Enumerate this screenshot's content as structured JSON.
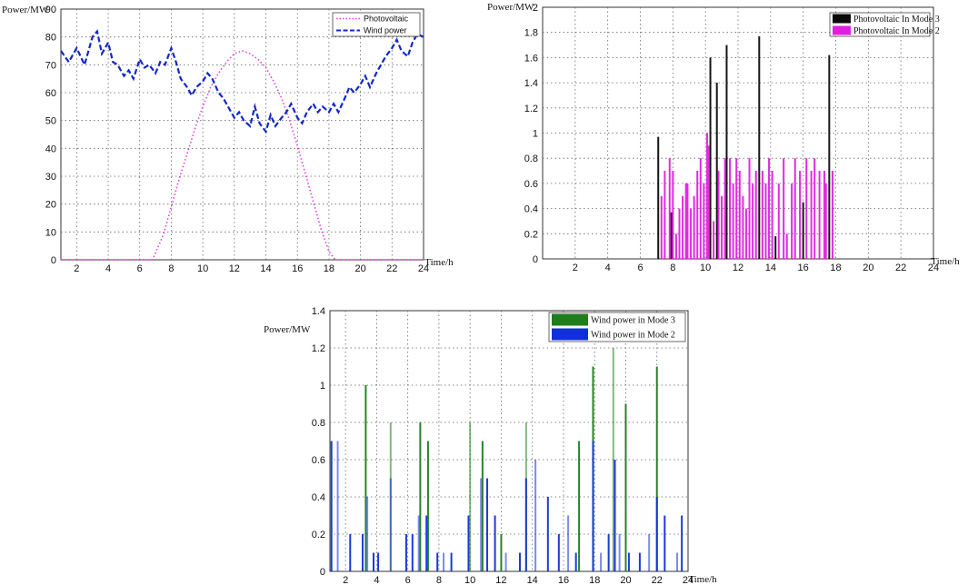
{
  "chart_data": [
    {
      "type": "line",
      "xlabel": "Time/h",
      "ylabel": "Power/MW",
      "xlim": [
        1,
        24
      ],
      "ylim": [
        0,
        90
      ],
      "xticks": [
        2,
        4,
        6,
        8,
        10,
        12,
        14,
        16,
        18,
        20,
        22,
        24
      ],
      "yticks": [
        0,
        10,
        20,
        30,
        40,
        50,
        60,
        70,
        80,
        90
      ],
      "grid": true,
      "legend": "top-right",
      "series": [
        {
          "name": "Photovoltaic",
          "color": "#e040e0",
          "style": "dotted",
          "x": [
            1,
            6.8,
            7.5,
            8,
            8.5,
            9,
            9.5,
            10,
            10.5,
            11,
            11.5,
            12,
            12.5,
            13,
            13.5,
            14,
            14.5,
            15,
            15.5,
            16,
            16.5,
            17,
            17.5,
            18,
            18.4,
            24
          ],
          "y": [
            0,
            0,
            9,
            19,
            29,
            38,
            47,
            55,
            62,
            67,
            71,
            74,
            75,
            74,
            72,
            69,
            64,
            58,
            50,
            41,
            31,
            21,
            11,
            3,
            0,
            0
          ]
        },
        {
          "name": "Wind power",
          "color": "#1428c8",
          "style": "dashed",
          "x": [
            1,
            1.5,
            2,
            2.5,
            3,
            3.3,
            3.6,
            4,
            4.3,
            4.6,
            5,
            5.3,
            5.6,
            6,
            6.3,
            6.6,
            7,
            7.3,
            7.6,
            8,
            8.3,
            8.6,
            9,
            9.3,
            9.6,
            10,
            10.3,
            10.6,
            11,
            11.3,
            11.6,
            12,
            12.3,
            12.6,
            13,
            13.3,
            13.6,
            14,
            14.3,
            14.6,
            15,
            15.3,
            15.6,
            16,
            16.3,
            16.6,
            17,
            17.3,
            17.6,
            18,
            18.3,
            18.6,
            19,
            19.3,
            19.6,
            20,
            20.3,
            20.6,
            21,
            21.3,
            21.6,
            22,
            22.3,
            22.6,
            23,
            23.3,
            23.6,
            24
          ],
          "y": [
            75,
            71,
            76,
            70,
            80,
            82,
            74,
            78,
            71,
            70,
            66,
            68,
            65,
            72,
            69,
            70,
            67,
            71,
            70,
            76,
            71,
            65,
            62,
            59,
            62,
            64,
            67,
            65,
            60,
            58,
            55,
            51,
            53,
            50,
            48,
            55,
            49,
            46,
            52,
            48,
            51,
            53,
            56,
            51,
            49,
            53,
            56,
            53,
            55,
            53,
            56,
            53,
            58,
            62,
            60,
            63,
            66,
            62,
            67,
            70,
            73,
            76,
            79,
            75,
            73,
            78,
            81,
            80
          ]
        }
      ]
    },
    {
      "type": "bar",
      "xlabel": "Time/h",
      "ylabel": "Power/MW",
      "xlim": [
        0,
        24
      ],
      "ylim": [
        0,
        2
      ],
      "xticks": [
        2,
        4,
        6,
        8,
        10,
        12,
        14,
        16,
        18,
        20,
        22,
        24
      ],
      "yticks": [
        0,
        0.2,
        0.4,
        0.6,
        0.8,
        1,
        1.2,
        1.4,
        1.6,
        1.8,
        2
      ],
      "ytick_labels": [
        "0",
        "0.2",
        "0.4",
        "0.6",
        "0.8",
        "1",
        "1.2",
        "1.4",
        "1.6",
        "1.8",
        "2"
      ],
      "grid": true,
      "legend": "top-right",
      "series": [
        {
          "name": "Photovoltaic In Mode 3",
          "color": "#0a0a0a",
          "x": [
            7.1,
            7.9,
            10.3,
            10.7,
            11.3,
            13.3,
            14.3,
            16.0,
            17.6
          ],
          "values": [
            0.97,
            0.37,
            1.6,
            1.4,
            1.7,
            1.77,
            0.18,
            0.45,
            1.62
          ]
        },
        {
          "name": "Photovoltaic In Mode 2",
          "color": "#e020e0",
          "x": [
            7.3,
            7.5,
            7.8,
            8.0,
            8.2,
            8.4,
            8.6,
            8.8,
            8.9,
            9.1,
            9.3,
            9.5,
            9.7,
            9.9,
            10.1,
            10.2,
            10.5,
            10.8,
            11.0,
            11.2,
            11.5,
            11.7,
            11.9,
            12.1,
            12.3,
            12.5,
            12.7,
            12.9,
            13.1,
            13.5,
            13.7,
            13.9,
            14.1,
            14.5,
            14.8,
            15.0,
            15.3,
            15.5,
            15.8,
            16.2,
            16.5,
            16.7,
            17.0,
            17.3,
            17.4,
            17.8
          ],
          "values": [
            0.5,
            0.7,
            0.8,
            0.7,
            0.2,
            0.4,
            0.5,
            0.6,
            0.6,
            0.4,
            0.5,
            0.7,
            0.8,
            0.6,
            1.0,
            0.9,
            0.3,
            0.7,
            0.5,
            0.8,
            0.8,
            0.6,
            0.8,
            0.7,
            0.5,
            0.4,
            0.8,
            0.6,
            0.7,
            0.7,
            0.6,
            0.8,
            0.7,
            0.6,
            0.8,
            0.2,
            0.6,
            0.8,
            0.7,
            0.8,
            0.7,
            0.8,
            0.7,
            0.7,
            0.6,
            0.7
          ]
        }
      ]
    },
    {
      "type": "bar",
      "xlabel": "Time/h",
      "ylabel": "Power/MW",
      "xlim": [
        1,
        24
      ],
      "ylim": [
        0,
        1.4
      ],
      "xticks": [
        2,
        4,
        6,
        8,
        10,
        12,
        14,
        16,
        18,
        20,
        22,
        24
      ],
      "yticks": [
        0,
        0.2,
        0.4,
        0.6,
        0.8,
        1,
        1.2,
        1.4
      ],
      "ytick_labels": [
        "0",
        "0.2",
        "0.4",
        "0.6",
        "0.8",
        "1",
        "1.2",
        "1.4"
      ],
      "grid": true,
      "legend": "top-right",
      "series": [
        {
          "name": "Wind power in Mode 3",
          "color": "#1e7e1e",
          "x": [
            3.3,
            4.9,
            6.8,
            7.3,
            10.0,
            10.8,
            12.0,
            13.6,
            17.0,
            17.9,
            19.2,
            20.0,
            22.0
          ],
          "values": [
            1.0,
            0.8,
            0.8,
            0.7,
            0.8,
            0.7,
            0.2,
            0.8,
            0.7,
            1.1,
            1.2,
            0.9,
            1.1
          ]
        },
        {
          "name": "Wind power in Mode 2",
          "color": "#1030d8",
          "x": [
            1.1,
            1.5,
            2.3,
            3.1,
            3.4,
            3.8,
            4.1,
            4.9,
            5.9,
            6.3,
            6.7,
            7.2,
            7.9,
            8.3,
            8.8,
            9.9,
            10.7,
            11.1,
            11.6,
            12.3,
            13.2,
            13.6,
            14.2,
            15.0,
            15.7,
            16.3,
            16.8,
            17.9,
            18.4,
            18.9,
            19.3,
            19.6,
            20.2,
            20.9,
            21.5,
            22.0,
            22.5,
            23.3,
            23.6
          ],
          "values": [
            0.7,
            0.7,
            0.2,
            0.2,
            0.4,
            0.1,
            0.1,
            0.5,
            0.2,
            0.2,
            0.3,
            0.3,
            0.1,
            0.1,
            0.1,
            0.3,
            0.5,
            0.5,
            0.3,
            0.1,
            0.1,
            0.5,
            0.6,
            0.4,
            0.2,
            0.3,
            0.1,
            0.7,
            0.1,
            0.2,
            0.6,
            0.2,
            0.1,
            0.1,
            0.2,
            0.4,
            0.3,
            0.1,
            0.3
          ]
        }
      ]
    }
  ]
}
